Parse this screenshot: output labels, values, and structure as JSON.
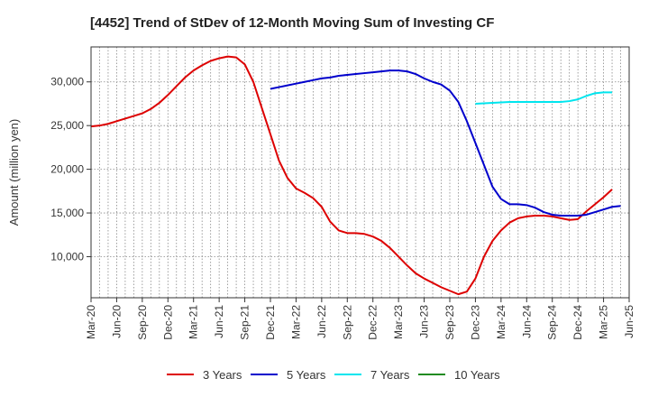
{
  "chart_data": {
    "type": "line",
    "title": "[4452]  Trend of StDev of 12-Month Moving Sum of Investing CF",
    "ylabel": "Amount (million yen)",
    "xlabel": "",
    "x_ticks": [
      "Mar-20",
      "Jun-20",
      "Sep-20",
      "Dec-20",
      "Mar-21",
      "Jun-21",
      "Sep-21",
      "Dec-21",
      "Mar-22",
      "Jun-22",
      "Sep-22",
      "Dec-22",
      "Mar-23",
      "Jun-23",
      "Sep-23",
      "Dec-23",
      "Mar-24",
      "Jun-24",
      "Sep-24",
      "Dec-24",
      "Mar-25",
      "Jun-25"
    ],
    "y_ticks": [
      10000,
      15000,
      20000,
      25000,
      30000
    ],
    "y_tick_labels": [
      "10,000",
      "15,000",
      "20,000",
      "25,000",
      "30,000"
    ],
    "ylim": [
      5300,
      34000
    ],
    "grid": true,
    "legend_position": "bottom",
    "series": [
      {
        "name": "3 Years",
        "color": "#dd0000",
        "start": "Mar-20",
        "values": [
          24900,
          25000,
          25200,
          25500,
          25800,
          26100,
          26400,
          26900,
          27600,
          28500,
          29500,
          30500,
          31300,
          31900,
          32400,
          32700,
          32900,
          32800,
          32000,
          30000,
          27000,
          24000,
          21000,
          19000,
          17800,
          17300,
          16700,
          15700,
          14000,
          13000,
          12700,
          12700,
          12600,
          12300,
          11800,
          11000,
          10000,
          9000,
          8100,
          7500,
          7000,
          6500,
          6100,
          5700,
          6000,
          7500,
          10000,
          11800,
          13000,
          13900,
          14400,
          14600,
          14700,
          14700,
          14600,
          14400,
          14200,
          14300,
          15200,
          16000,
          16800,
          17700
        ]
      },
      {
        "name": "5 Years",
        "color": "#0000cc",
        "start": "Dec-21",
        "values": [
          29200,
          29400,
          29600,
          29800,
          30000,
          30200,
          30400,
          30500,
          30700,
          30800,
          30900,
          31000,
          31100,
          31200,
          31300,
          31300,
          31200,
          30900,
          30400,
          30000,
          29700,
          29000,
          27700,
          25500,
          23000,
          20500,
          18000,
          16600,
          16000,
          16000,
          15900,
          15600,
          15100,
          14800,
          14700,
          14700,
          14700,
          14800,
          15100,
          15400,
          15700,
          15800
        ]
      },
      {
        "name": "7 Years",
        "color": "#00e5ee",
        "start": "Dec-23",
        "values": [
          27500,
          27550,
          27600,
          27650,
          27700,
          27700,
          27700,
          27700,
          27700,
          27700,
          27700,
          27800,
          28000,
          28400,
          28700,
          28800,
          28800
        ]
      },
      {
        "name": "10 Years",
        "color": "#228b22",
        "start": "Mar-20",
        "values": []
      }
    ]
  }
}
